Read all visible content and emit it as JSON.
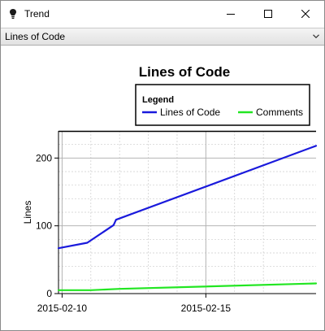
{
  "window": {
    "title": "Trend",
    "icon": "lightbulb-icon",
    "controls": [
      "minimize-icon",
      "maximize-icon",
      "close-icon"
    ]
  },
  "selector": {
    "value": "Lines of Code",
    "icon": "chevron-down-icon"
  },
  "chart_data": {
    "type": "line",
    "title": "Lines of Code",
    "xlabel": "",
    "ylabel": "Lines",
    "legend": {
      "title": "Legend",
      "placement": "top-right",
      "orientation": "horizontal"
    },
    "x_type": "date",
    "xlim": [
      "2015-02-09T21:00",
      "2015-02-18T20:00"
    ],
    "ylim": [
      0,
      240
    ],
    "x_ticks": [
      "2015-02-10",
      "2015-02-15"
    ],
    "y_ticks": [
      0,
      100,
      200
    ],
    "grid": true,
    "series": [
      {
        "name": "Lines of Code",
        "color": "#1a1adc",
        "points": [
          [
            "2015-02-09T21:00",
            67
          ],
          [
            "2015-02-10T21:00",
            75
          ],
          [
            "2015-02-11T19:00",
            101
          ],
          [
            "2015-02-11T21:00",
            109
          ],
          [
            "2015-02-18T20:00",
            218
          ]
        ]
      },
      {
        "name": "Comments",
        "color": "#22e622",
        "points": [
          [
            "2015-02-09T21:00",
            5
          ],
          [
            "2015-02-11T00:00",
            5
          ],
          [
            "2015-02-12T00:00",
            7
          ],
          [
            "2015-02-18T20:00",
            15
          ]
        ]
      }
    ]
  }
}
